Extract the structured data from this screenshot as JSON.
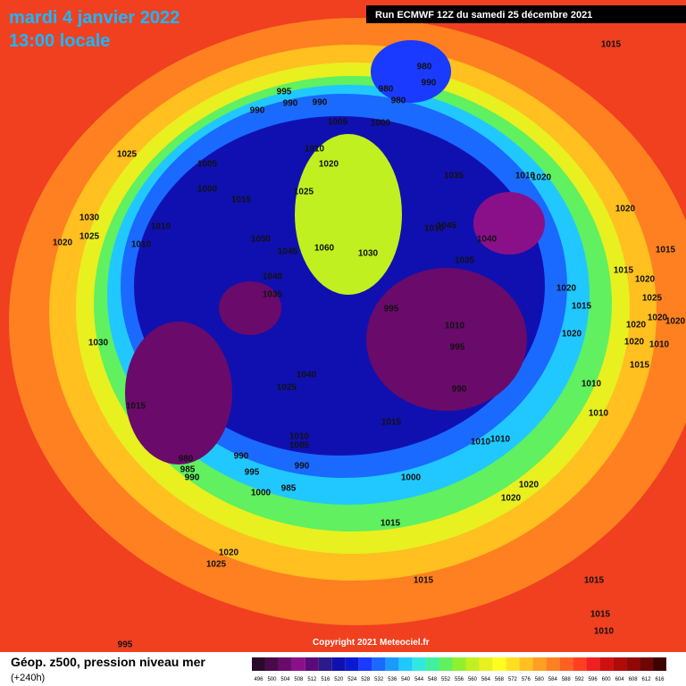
{
  "header": {
    "date": "mardi 4 janvier 2022",
    "time": "13:00 locale",
    "run": "Run ECMWF 12Z du samedi 25 décembre 2021"
  },
  "copyright": "Copyright 2021 Meteociel.fr",
  "legend": {
    "title": "Géop. z500, pression niveau mer",
    "lead": "(+240h)",
    "labels": [
      496,
      500,
      504,
      508,
      512,
      516,
      520,
      524,
      528,
      532,
      536,
      540,
      544,
      548,
      552,
      556,
      560,
      564,
      568,
      572,
      576,
      580,
      584,
      588,
      592,
      596,
      600,
      604,
      608,
      612,
      616
    ],
    "colors": [
      "#2a0a2a",
      "#4a0a4a",
      "#6a0a6a",
      "#8a108a",
      "#5a0a7a",
      "#2a1a8a",
      "#1010b0",
      "#0a1ad0",
      "#1a3aff",
      "#1a6aff",
      "#1a9aff",
      "#20c8ff",
      "#30e8e0",
      "#40f0a0",
      "#60f060",
      "#90f030",
      "#c0f020",
      "#e8f020",
      "#ffff20",
      "#ffe020",
      "#ffc020",
      "#ffa020",
      "#ff8020",
      "#ff6020",
      "#ff4020",
      "#f02020",
      "#d01010",
      "#b00a0a",
      "#900808",
      "#700505",
      "#400000"
    ]
  },
  "isobars": [
    1025,
    1005,
    1000,
    1015,
    1010,
    1010,
    1030,
    1025,
    1020,
    995,
    990,
    990,
    990,
    1005,
    1010,
    1020,
    1025,
    1050,
    1060,
    1045,
    1040,
    1035,
    1030,
    980,
    980,
    980,
    990,
    1000,
    1035,
    1020,
    1010,
    1045,
    1010,
    1040,
    1035,
    995,
    1010,
    995,
    990,
    1010,
    1010,
    1015,
    1040,
    1025,
    1030,
    1015,
    1010,
    1005,
    980,
    985,
    990,
    990,
    995,
    990,
    985,
    1000,
    1000,
    1020,
    1020,
    1015,
    1015,
    1020,
    1025,
    1015,
    1020,
    1015,
    1015,
    1020,
    1025,
    1020,
    1015,
    1020,
    1020,
    1020,
    1020,
    1020,
    1010,
    1015,
    1010,
    1010,
    1015,
    1015,
    1010,
    995
  ]
}
